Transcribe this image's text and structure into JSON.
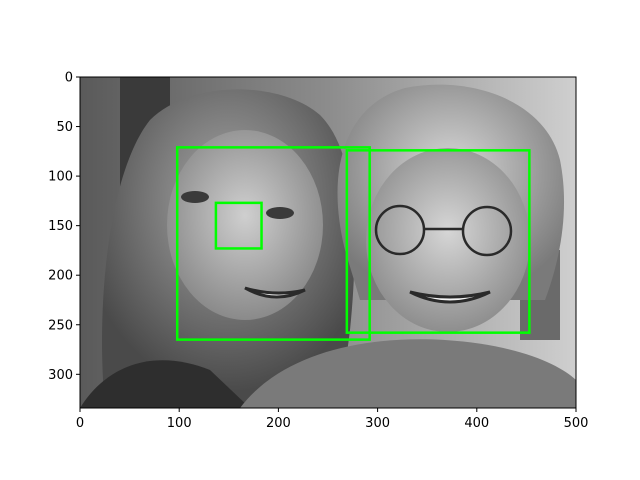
{
  "figure": {
    "x_ticks": [
      "0",
      "100",
      "200",
      "300",
      "400",
      "500"
    ],
    "y_ticks": [
      "0",
      "50",
      "100",
      "150",
      "200",
      "250",
      "300"
    ],
    "axes_range": {
      "x": [
        0,
        500
      ],
      "y": [
        0,
        334
      ]
    },
    "y_axis_inverted": true,
    "image": {
      "description_colorspace": "grayscale",
      "subject_count": 2
    },
    "detection_color": "#00ff00",
    "detections": [
      {
        "kind": "face",
        "x0": 98,
        "y0": 71,
        "x1": 292,
        "y1": 265
      },
      {
        "kind": "face",
        "x0": 269,
        "y0": 74,
        "x1": 453,
        "y1": 258
      },
      {
        "kind": "eye",
        "x0": 137,
        "y0": 127,
        "x1": 183,
        "y1": 173
      }
    ]
  }
}
